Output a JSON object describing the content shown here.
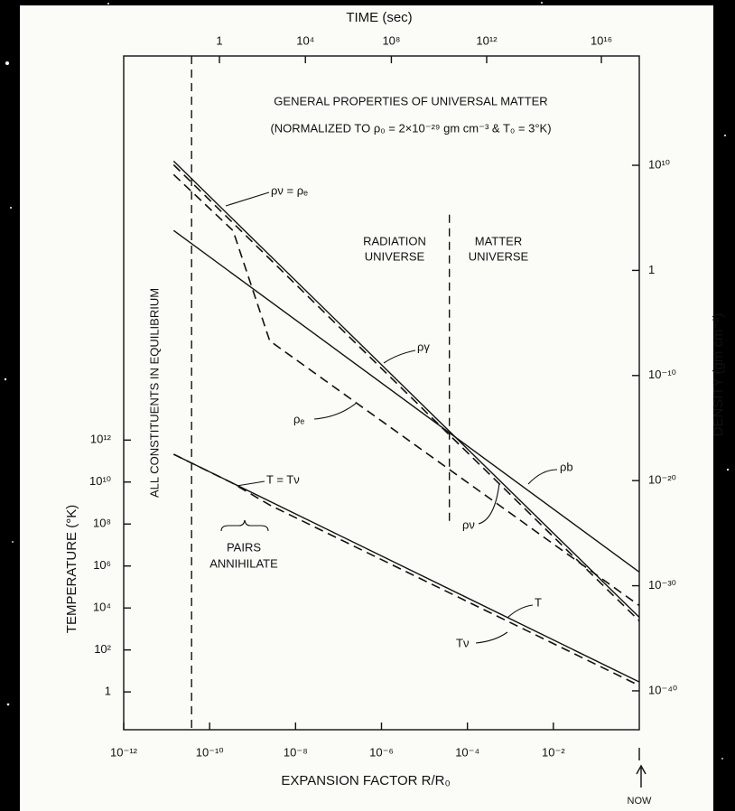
{
  "chart_data": {
    "type": "line",
    "title": "GENERAL PROPERTIES OF UNIVERSAL MATTER",
    "subtitle": "(NORMALIZED TO ρ₀ = 2×10⁻²⁹ gm cm⁻³ & T₀ = 3°K)",
    "x2_label": "TIME (sec)",
    "x_label": "EXPANSION FACTOR R/R₀",
    "y_label": "TEMPERATURE (°K)",
    "y2_label": "DENSITY (gm cm⁻³)",
    "log_x": true,
    "log_y": true,
    "log_y2": true,
    "xlim": [
      1e-12,
      1
    ],
    "xticks": [
      {
        "value": 1e-12,
        "label": "10⁻¹²"
      },
      {
        "value": 1e-10,
        "label": "10⁻¹⁰"
      },
      {
        "value": 1e-08,
        "label": "10⁻⁸"
      },
      {
        "value": 1e-06,
        "label": "10⁻⁶"
      },
      {
        "value": 0.0001,
        "label": "10⁻⁴"
      },
      {
        "value": 0.01,
        "label": "10⁻²"
      },
      {
        "value": 1,
        "label": "NOW"
      }
    ],
    "time_relation": {
      "x": [
        1e-12,
        3.8e-05,
        1
      ],
      "t": [
        3.5e-05,
        50000000000.0,
        2.1e+17
      ]
    },
    "x2ticks": [
      1,
      {
        "value": 10000,
        "label": "10⁴"
      },
      {
        "value": 100000000,
        "label": "10⁸"
      },
      {
        "value": 1000000000000,
        "label": "10¹²"
      },
      {
        "value": 10000000000000000,
        "label": "10¹⁶"
      }
    ],
    "ylim": [
      0.0158,
      2e+30
    ],
    "yticks": [
      1,
      {
        "value": 100,
        "label": "10²"
      },
      {
        "value": 10000,
        "label": "10⁴"
      },
      {
        "value": 1000000,
        "label": "10⁶"
      },
      {
        "value": 100000000,
        "label": "10⁸"
      },
      {
        "value": 10000000000,
        "label": "10¹⁰"
      },
      {
        "value": 1000000000000,
        "label": "10¹²"
      }
    ],
    "y2lim": [
      2e-44,
      2.5e+20
    ],
    "y2ticks": [
      {
        "value": 1e-40,
        "label": "10⁻⁴⁰"
      },
      {
        "value": 1e-30,
        "label": "10⁻³⁰"
      },
      {
        "value": 1e-20,
        "label": "10⁻²⁰"
      },
      {
        "value": 1e-10,
        "label": "10⁻¹⁰"
      },
      1,
      {
        "value": 10000000000,
        "label": "10¹⁰"
      }
    ],
    "series": [
      {
        "name": "ρb",
        "style": "solid",
        "axis": "y2",
        "color": "#111111",
        "x": [
          1.45e-11,
          1
        ],
        "values": [
          6300,
          2e-29
        ]
      },
      {
        "name": "ργ",
        "style": "solid",
        "axis": "y2",
        "color": "#111111",
        "x": [
          1.45e-11,
          1
        ],
        "values": [
          25000000000.0,
          1e-33
        ]
      },
      {
        "name": "ρₑ",
        "style": "dashed",
        "axis": "y2",
        "color": "#111111",
        "x": [
          1.45e-11,
          3.5e-10,
          2.5e-09,
          1
        ],
        "values": [
          1300000000.0,
          6000,
          2e-07,
          1.3e-32
        ]
      },
      {
        "name": "ρν",
        "style": "dashed",
        "axis": "y2",
        "color": "#111111",
        "x": [
          1.45e-11,
          1
        ],
        "values": [
          11000000000.0,
          4.5e-34
        ]
      },
      {
        "name": "T",
        "style": "solid",
        "axis": "y",
        "color": "#111111",
        "x": [
          1.45e-11,
          1
        ],
        "values": [
          210000000000.0,
          3
        ]
      },
      {
        "name": "Tν",
        "style": "dashed",
        "axis": "y",
        "color": "#111111",
        "x": [
          1.45e-11,
          3.2e-10,
          2.5e-09,
          1
        ],
        "values": [
          210000000000.0,
          9500000000.0,
          800000000,
          2
        ]
      }
    ],
    "vlines": [
      {
        "x": 3.8e-11
      },
      {
        "x": 3.8e-05,
        "y2range": [
          200000,
          6e-25
        ]
      }
    ],
    "annotations": {
      "equal_density": "ρν = ρₑ",
      "equal_temperature": "T = Tν",
      "equilibrium": "ALL CONSTITUENTS IN EQUILIBRIUM",
      "pairs": [
        "PAIRS",
        "ANNIHILATE"
      ],
      "radiation": [
        "RADIATION",
        "UNIVERSE"
      ],
      "matter": [
        "MATTER",
        "UNIVERSE"
      ]
    }
  }
}
